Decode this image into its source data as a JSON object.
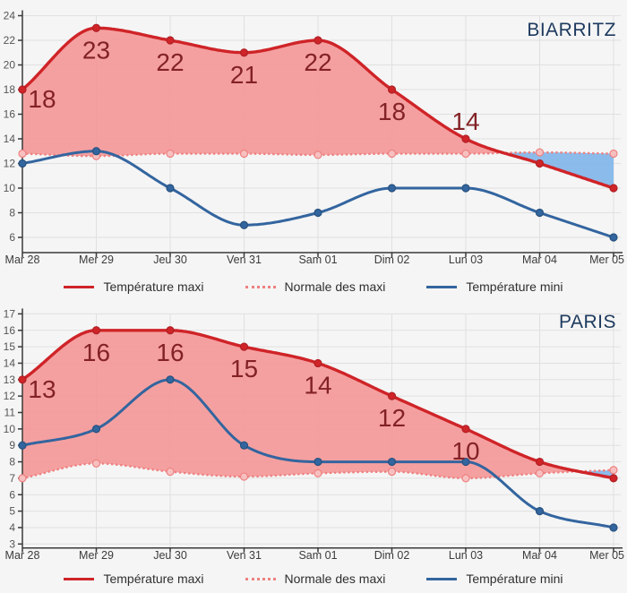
{
  "legend": {
    "maxi": "Température maxi",
    "normale": "Normale des maxi",
    "mini": "Température mini"
  },
  "colors": {
    "background": "#f5f5f5",
    "grid": "#e0e0e0",
    "axis": "#3a3a3a",
    "tick_label": "#555555",
    "day_label": "#3b3b3b",
    "maxi_line": "#cf2428",
    "maxi_marker_stroke": "#b02025",
    "maxi_fill": "#f59494",
    "normale_line": "#ee8181",
    "normale_marker_fill": "#f7c0c0",
    "mini_line": "#33659f",
    "mini_marker_stroke": "#28517e",
    "cold_fill": "#7fb5ea",
    "value_label": "#832226",
    "title": "#1d3a5e",
    "legend_text": "#2f2f2f"
  },
  "chart_data": [
    {
      "type": "line",
      "title": "BIARRITZ",
      "x": [
        "Mar 28",
        "Mer 29",
        "Jeu 30",
        "Ven 31",
        "Sam 01",
        "Dim 02",
        "Lun 03",
        "Mar 04",
        "Mer 05"
      ],
      "ylim": [
        4.75,
        24
      ],
      "yticks": [
        6,
        8,
        10,
        12,
        14,
        16,
        18,
        20,
        22,
        24
      ],
      "grid": true,
      "legend_position": "bottom",
      "series": [
        {
          "name": "Température maxi",
          "values": [
            18,
            23,
            22,
            21,
            22,
            18,
            14,
            12,
            10
          ],
          "point_labels": [
            "18",
            "23",
            "22",
            "21",
            "22",
            "18",
            "14",
            "",
            ""
          ]
        },
        {
          "name": "Normale des maxi",
          "values": [
            12.8,
            12.6,
            12.8,
            12.8,
            12.7,
            12.8,
            12.8,
            12.9,
            12.8
          ]
        },
        {
          "name": "Température mini",
          "values": [
            12,
            13,
            10,
            7,
            8,
            10,
            10,
            8,
            6
          ]
        }
      ]
    },
    {
      "type": "line",
      "title": "PARIS",
      "x": [
        "Mar 28",
        "Mer 29",
        "Jeu 30",
        "Ven 31",
        "Sam 01",
        "Dim 02",
        "Lun 03",
        "Mar 04",
        "Mer 05"
      ],
      "ylim": [
        2.75,
        17
      ],
      "yticks": [
        3,
        4,
        5,
        6,
        7,
        8,
        9,
        10,
        11,
        12,
        13,
        14,
        15,
        16,
        17
      ],
      "grid": true,
      "legend_position": "bottom",
      "series": [
        {
          "name": "Température maxi",
          "values": [
            13,
            16,
            16,
            15,
            14,
            12,
            10,
            8,
            7
          ],
          "point_labels": [
            "13",
            "16",
            "16",
            "15",
            "14",
            "12",
            "10",
            "",
            ""
          ]
        },
        {
          "name": "Normale des maxi",
          "values": [
            7,
            7.9,
            7.4,
            7.1,
            7.3,
            7.4,
            7,
            7.3,
            7.5
          ]
        },
        {
          "name": "Température mini",
          "values": [
            9,
            10,
            13,
            9,
            8,
            8,
            8,
            5,
            4
          ]
        }
      ]
    }
  ]
}
